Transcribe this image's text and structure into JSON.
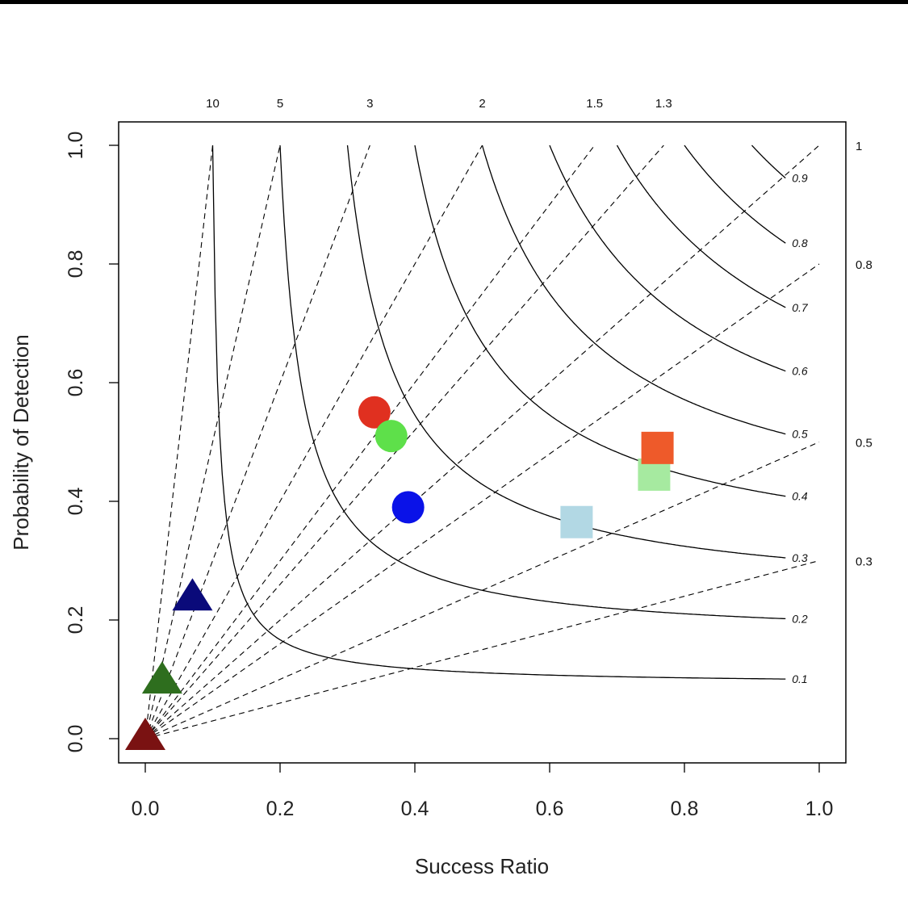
{
  "chart_data": {
    "type": "scatter",
    "subtype": "performance-diagram",
    "xlabel": "Success Ratio",
    "ylabel": "Probability of Detection",
    "xlim": [
      -0.04,
      1.04
    ],
    "ylim": [
      -0.04,
      1.04
    ],
    "x_ticks": [
      0.0,
      0.2,
      0.4,
      0.6,
      0.8,
      1.0
    ],
    "y_ticks": [
      0.0,
      0.2,
      0.4,
      0.6,
      0.8,
      1.0
    ],
    "x_tick_labels": [
      "0.0",
      "0.2",
      "0.4",
      "0.6",
      "0.8",
      "1.0"
    ],
    "y_tick_labels": [
      "0.0",
      "0.2",
      "0.4",
      "0.6",
      "0.8",
      "1.0"
    ],
    "bias_lines": [
      {
        "value": 10,
        "label": "10"
      },
      {
        "value": 5,
        "label": "5"
      },
      {
        "value": 3,
        "label": "3"
      },
      {
        "value": 2,
        "label": "2"
      },
      {
        "value": 1.5,
        "label": "1.5"
      },
      {
        "value": 1.3,
        "label": "1.3"
      },
      {
        "value": 1,
        "label": "1"
      },
      {
        "value": 0.8,
        "label": "0.8"
      },
      {
        "value": 0.5,
        "label": "0.5"
      },
      {
        "value": 0.3,
        "label": "0.3"
      }
    ],
    "csi_contours": [
      {
        "value": 0.1,
        "label": "0.1"
      },
      {
        "value": 0.2,
        "label": "0.2"
      },
      {
        "value": 0.3,
        "label": "0.3"
      },
      {
        "value": 0.4,
        "label": "0.4"
      },
      {
        "value": 0.5,
        "label": "0.5"
      },
      {
        "value": 0.6,
        "label": "0.6"
      },
      {
        "value": 0.7,
        "label": "0.7"
      },
      {
        "value": 0.8,
        "label": "0.8"
      },
      {
        "value": 0.9,
        "label": "0.9"
      }
    ],
    "grid": false,
    "points": [
      {
        "x": 0.34,
        "y": 0.55,
        "shape": "circle",
        "color": "#e03020"
      },
      {
        "x": 0.365,
        "y": 0.51,
        "shape": "circle",
        "color": "#5ee04a"
      },
      {
        "x": 0.39,
        "y": 0.39,
        "shape": "circle",
        "color": "#0a12e8"
      },
      {
        "x": 0.64,
        "y": 0.365,
        "shape": "square",
        "color": "#b2d8e4"
      },
      {
        "x": 0.755,
        "y": 0.445,
        "shape": "square",
        "color": "#a6eaa0"
      },
      {
        "x": 0.76,
        "y": 0.49,
        "shape": "square",
        "color": "#ee5a2a"
      },
      {
        "x": 0.07,
        "y": 0.235,
        "shape": "triangle",
        "color": "#0a0a7a"
      },
      {
        "x": 0.025,
        "y": 0.095,
        "shape": "triangle",
        "color": "#2e6e1e"
      },
      {
        "x": 0.0,
        "y": 0.0,
        "shape": "triangle",
        "color": "#7a1212"
      }
    ]
  }
}
